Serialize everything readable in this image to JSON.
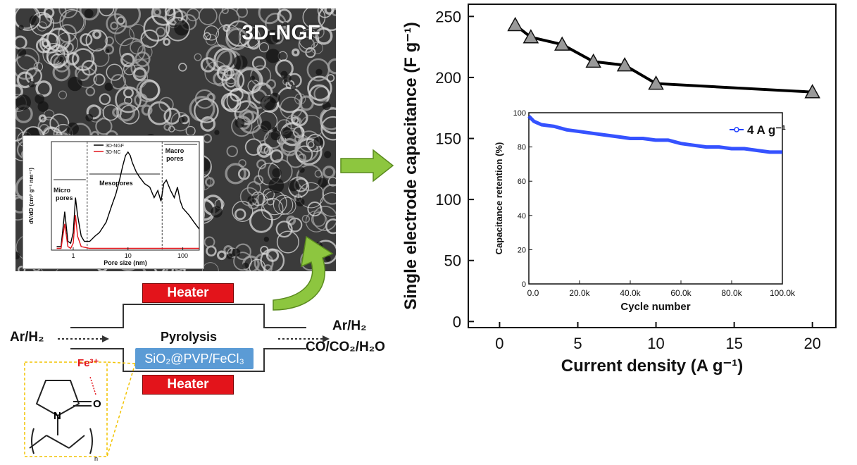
{
  "sem_image": {
    "label": "3D-NGF"
  },
  "pore_inset": {
    "chart_data": {
      "type": "line",
      "xlabel": "Pore size (nm)",
      "ylabel": "dV/dD (cm³ g⁻¹ nm⁻¹)",
      "xscale": "log",
      "xlim": [
        0.4,
        200
      ],
      "x_ticks": [
        "1",
        "10",
        "100"
      ],
      "legend": [
        "3D-NGF",
        "3D-NC"
      ],
      "legend_position": "top-center",
      "regions": {
        "micro": "Micro pores",
        "meso": "Mesopores",
        "macro": "Macro pores"
      },
      "series": [
        {
          "name": "3D-NGF",
          "color": "#000000",
          "x": [
            0.5,
            0.6,
            0.7,
            0.8,
            0.9,
            1.0,
            1.1,
            1.2,
            1.4,
            1.6,
            2.0,
            2.5,
            3,
            4,
            5,
            6,
            7,
            8,
            9,
            10,
            11,
            12,
            14,
            16,
            20,
            25,
            30,
            35,
            40,
            45,
            50,
            60,
            70,
            80,
            90,
            100,
            130,
            160,
            200
          ],
          "y": [
            0.02,
            0.02,
            0.22,
            0.05,
            0.04,
            0.1,
            0.3,
            0.2,
            0.08,
            0.05,
            0.05,
            0.08,
            0.1,
            0.16,
            0.25,
            0.32,
            0.4,
            0.48,
            0.54,
            0.56,
            0.54,
            0.5,
            0.45,
            0.42,
            0.38,
            0.36,
            0.3,
            0.34,
            0.28,
            0.38,
            0.4,
            0.34,
            0.3,
            0.36,
            0.28,
            0.24,
            0.2,
            0.16,
            0.12
          ]
        },
        {
          "name": "3D-NC",
          "color": "#e3141b",
          "x": [
            0.5,
            0.6,
            0.7,
            0.8,
            0.9,
            1.0,
            1.1,
            1.2,
            1.4,
            2,
            5,
            10,
            20,
            50,
            100,
            200
          ],
          "y": [
            0.01,
            0.01,
            0.15,
            0.02,
            0.01,
            0.04,
            0.2,
            0.08,
            0.02,
            0.01,
            0.01,
            0.01,
            0.01,
            0.01,
            0.01,
            0.01
          ]
        }
      ]
    }
  },
  "process": {
    "heater_top": "Heater",
    "heater_bottom": "Heater",
    "pyrolysis": "Pyrolysis",
    "precursor": "SiO₂@PVP/FeCl₃",
    "gas_in": "Ar/H₂",
    "gas_out_1": "Ar/H₂",
    "gas_out_2": "CO/CO₂/H₂O",
    "fe_label": "Fe³⁺",
    "atom_n": "N",
    "atom_o": "O",
    "subscript_n": "n"
  },
  "main_chart": {
    "chart_data": {
      "type": "line",
      "xlabel": "Current density (A g⁻¹)",
      "ylabel": "Single electrode capacitance (F g⁻¹)",
      "xlim": [
        -2,
        21.5
      ],
      "ylim": [
        -5,
        260
      ],
      "x_ticks": [
        0,
        5,
        10,
        15,
        20
      ],
      "y_ticks": [
        0,
        50,
        100,
        150,
        200,
        250
      ],
      "series": [
        {
          "name": "",
          "color": "#000000",
          "marker": "triangle",
          "x": [
            1,
            2,
            4,
            6,
            8,
            10,
            20
          ],
          "y": [
            243,
            233,
            227,
            213,
            210,
            195,
            188
          ]
        }
      ]
    }
  },
  "retention_inset": {
    "chart_data": {
      "type": "line",
      "xlabel": "Cycle number",
      "ylabel": "Capacitance retention (%)",
      "xlim": [
        0,
        100000
      ],
      "ylim": [
        0,
        100
      ],
      "x_ticks": [
        "0.0",
        "20.0k",
        "40.0k",
        "60.0k",
        "80.0k",
        "100.0k"
      ],
      "y_ticks": [
        0,
        20,
        40,
        60,
        80,
        100
      ],
      "legend_position": "top-right",
      "series": [
        {
          "name": "4 A g⁻¹",
          "color": "#1f3fff",
          "x": [
            0,
            2000,
            5000,
            10000,
            15000,
            20000,
            25000,
            30000,
            35000,
            40000,
            45000,
            50000,
            55000,
            60000,
            65000,
            70000,
            75000,
            80000,
            85000,
            90000,
            95000,
            100000
          ],
          "y": [
            98,
            95,
            93,
            92,
            90,
            89,
            88,
            87,
            86,
            85,
            85,
            84,
            84,
            82,
            81,
            80,
            80,
            79,
            79,
            78,
            77,
            77
          ]
        }
      ]
    }
  }
}
